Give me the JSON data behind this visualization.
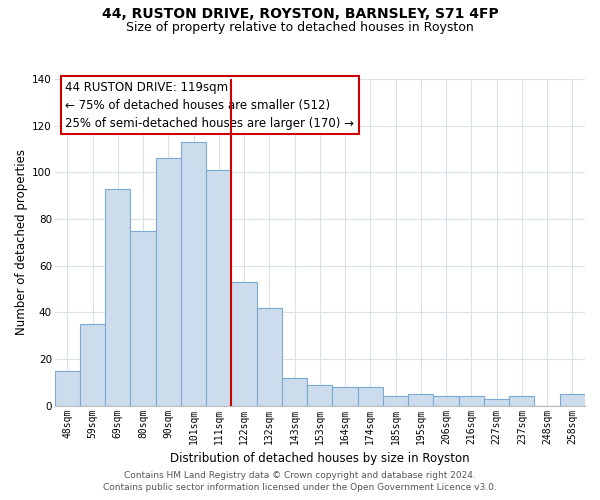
{
  "title": "44, RUSTON DRIVE, ROYSTON, BARNSLEY, S71 4FP",
  "subtitle": "Size of property relative to detached houses in Royston",
  "xlabel": "Distribution of detached houses by size in Royston",
  "ylabel": "Number of detached properties",
  "bar_labels": [
    "48sqm",
    "59sqm",
    "69sqm",
    "80sqm",
    "90sqm",
    "101sqm",
    "111sqm",
    "122sqm",
    "132sqm",
    "143sqm",
    "153sqm",
    "164sqm",
    "174sqm",
    "185sqm",
    "195sqm",
    "206sqm",
    "216sqm",
    "227sqm",
    "237sqm",
    "248sqm",
    "258sqm"
  ],
  "bar_values": [
    15,
    35,
    93,
    75,
    106,
    113,
    101,
    53,
    42,
    12,
    9,
    8,
    8,
    4,
    5,
    4,
    4,
    3,
    4,
    0,
    5
  ],
  "bar_color": "#ccdcec",
  "bar_edge_color": "#7aaad4",
  "vline_color": "#cc0000",
  "annotation_title": "44 RUSTON DRIVE: 119sqm",
  "annotation_line1": "← 75% of detached houses are smaller (512)",
  "annotation_line2": "25% of semi-detached houses are larger (170) →",
  "annotation_box_color": "#ffffff",
  "annotation_box_edge": "#cc0000",
  "ylim": [
    0,
    140
  ],
  "yticks": [
    0,
    20,
    40,
    60,
    80,
    100,
    120,
    140
  ],
  "footer1": "Contains HM Land Registry data © Crown copyright and database right 2024.",
  "footer2": "Contains public sector information licensed under the Open Government Licence v3.0.",
  "title_fontsize": 10,
  "subtitle_fontsize": 9,
  "axis_label_fontsize": 8.5,
  "tick_fontsize": 7,
  "annotation_fontsize": 8.5,
  "footer_fontsize": 6.5,
  "grid_color": "#d8e0e8"
}
